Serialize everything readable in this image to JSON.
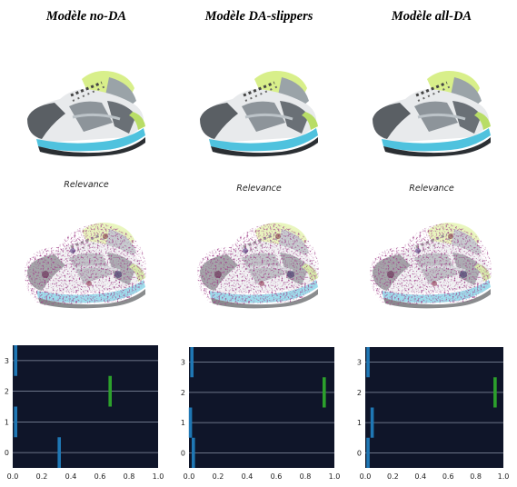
{
  "panels": [
    {
      "title": "Modèle no-DA",
      "relevance_label": "Relevance"
    },
    {
      "title": "Modèle DA-slippers",
      "relevance_label": "Relevance"
    },
    {
      "title": "Modèle all-DA",
      "relevance_label": "Relevance"
    }
  ],
  "colors": {
    "background": "#0f1529",
    "grid": "#8a93a8",
    "blue_bar": "#1f77b4",
    "green_bar": "#2ca02c"
  },
  "chart_data": [
    {
      "type": "scatter",
      "title": "",
      "xlabel": "",
      "ylabel": "",
      "xlim": [
        0.0,
        1.0
      ],
      "ylim": [
        -0.5,
        3.5
      ],
      "x_ticks": [
        "0.0",
        "0.2",
        "0.4",
        "0.6",
        "0.8",
        "1.0"
      ],
      "y_ticks": [
        "0",
        "1",
        "2",
        "3"
      ],
      "grid": true,
      "points": [
        {
          "class": 3,
          "value": 0.02,
          "color": "blue"
        },
        {
          "class": 2,
          "value": 0.67,
          "color": "green"
        },
        {
          "class": 1,
          "value": 0.02,
          "color": "blue"
        },
        {
          "class": 0,
          "value": 0.32,
          "color": "blue"
        }
      ]
    },
    {
      "type": "scatter",
      "title": "",
      "xlabel": "",
      "ylabel": "",
      "xlim": [
        0.0,
        1.0
      ],
      "ylim": [
        -0.5,
        3.5
      ],
      "x_ticks": [
        "0.0",
        "0.2",
        "0.4",
        "0.6",
        "0.8",
        "1.0"
      ],
      "y_ticks": [
        "0",
        "1",
        "2",
        "3"
      ],
      "grid": true,
      "points": [
        {
          "class": 3,
          "value": 0.02,
          "color": "blue"
        },
        {
          "class": 2,
          "value": 0.93,
          "color": "green"
        },
        {
          "class": 1,
          "value": 0.01,
          "color": "blue"
        },
        {
          "class": 0,
          "value": 0.03,
          "color": "blue"
        }
      ]
    },
    {
      "type": "scatter",
      "title": "",
      "xlabel": "",
      "ylabel": "",
      "xlim": [
        0.0,
        1.0
      ],
      "ylim": [
        -0.5,
        3.5
      ],
      "x_ticks": [
        "0.0",
        "0.2",
        "0.4",
        "0.6",
        "0.8",
        "1.0"
      ],
      "y_ticks": [
        "0",
        "1",
        "2",
        "3"
      ],
      "grid": true,
      "points": [
        {
          "class": 3,
          "value": 0.02,
          "color": "blue"
        },
        {
          "class": 2,
          "value": 0.94,
          "color": "green"
        },
        {
          "class": 1,
          "value": 0.05,
          "color": "blue"
        },
        {
          "class": 0,
          "value": 0.02,
          "color": "blue"
        }
      ]
    }
  ]
}
